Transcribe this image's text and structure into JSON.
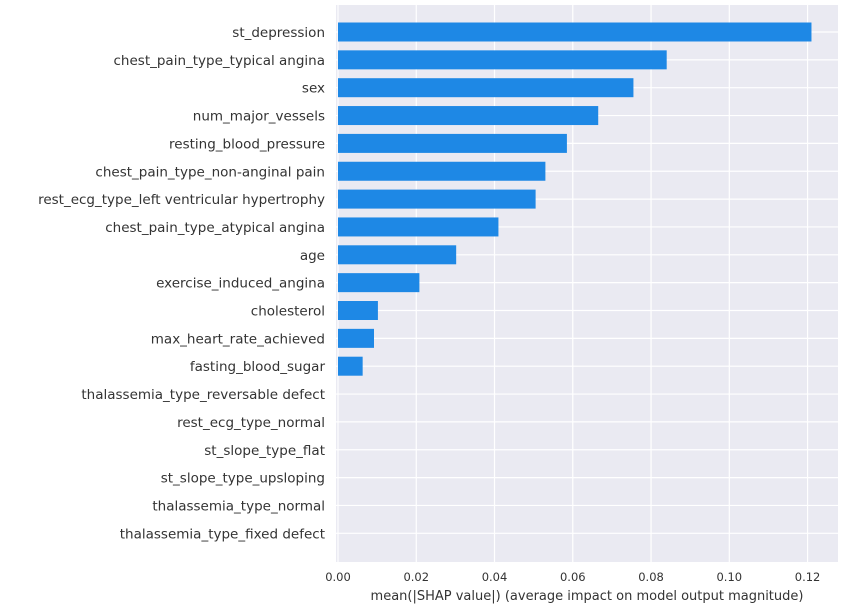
{
  "chart_data": {
    "type": "bar",
    "orientation": "horizontal",
    "title": "",
    "xlabel": "mean(|SHAP value|) (average impact on model output magnitude)",
    "ylabel": "",
    "xlim": [
      0,
      0.127
    ],
    "xticks": [
      "0.00",
      "0.02",
      "0.04",
      "0.06",
      "0.08",
      "0.10",
      "0.12"
    ],
    "grid": true,
    "bar_color": "#1E88E5",
    "background_color": "#EAEAF2",
    "categories": [
      "st_depression",
      "chest_pain_type_typical angina",
      "sex",
      "num_major_vessels",
      "resting_blood_pressure",
      "chest_pain_type_non-anginal pain",
      "rest_ecg_type_left ventricular hypertrophy",
      "chest_pain_type_atypical angina",
      "age",
      "exercise_induced_angina",
      "cholesterol",
      "max_heart_rate_achieved",
      "fasting_blood_sugar",
      "thalassemia_type_reversable defect",
      "rest_ecg_type_normal",
      "st_slope_type_flat",
      "st_slope_type_upsloping",
      "thalassemia_type_normal",
      "thalassemia_type_fixed defect"
    ],
    "values": [
      0.121,
      0.084,
      0.0755,
      0.0665,
      0.0585,
      0.053,
      0.0505,
      0.041,
      0.0302,
      0.0208,
      0.0102,
      0.0092,
      0.0063,
      0,
      0,
      0,
      0,
      0,
      0
    ]
  }
}
